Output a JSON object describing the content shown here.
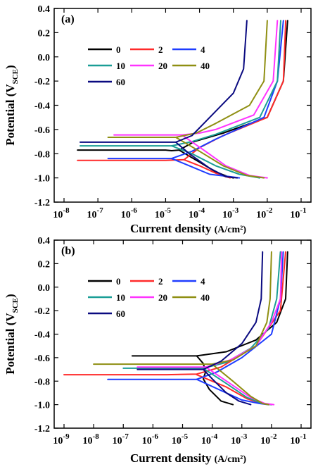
{
  "chart_data": [
    {
      "type": "line",
      "panel_label": "(a)",
      "xlabel_main": "Current density ",
      "xlabel_unit": "(A/cm²)",
      "ylabel_main": "Potential (V",
      "ylabel_sub": "SCE",
      "ylabel_end": ")",
      "x_scale": "log",
      "xlim": [
        1e-08,
        0.1
      ],
      "ylim": [
        -1.2,
        0.4
      ],
      "x_ticks": [
        -8,
        -7,
        -6,
        -5,
        -4,
        -3,
        -2,
        -1
      ],
      "y_ticks": [
        "0.4",
        "0.2",
        "0.0",
        "-0.2",
        "-0.4",
        "-0.6",
        "-0.8",
        "-1.0",
        "-1.2"
      ],
      "legend_placement": "top-left",
      "series": [
        {
          "name": "0",
          "color": "#000000",
          "ecorr": -0.77,
          "icorr": 2.5e-05,
          "x": [
            2.5e-08,
            1e-06,
            1e-05,
            1.5e-05,
            2.5e-05,
            7e-05,
            0.0005,
            0.01,
            0.03,
            0.04
          ],
          "y": [
            -0.77,
            -0.77,
            -0.77,
            -0.775,
            -0.77,
            -0.7,
            -0.63,
            -0.5,
            -0.2,
            0.3
          ],
          "cathodic_x": [
            2.5e-05,
            0.0001,
            0.0003,
            0.0007,
            0.001
          ],
          "cathodic_y": [
            -0.77,
            -0.87,
            -0.95,
            -0.99,
            -1.0
          ]
        },
        {
          "name": "2",
          "color": "#ff2a2a",
          "ecorr": -0.85,
          "icorr": 3.5e-05,
          "x": [
            2.5e-08,
            1e-06,
            1e-05,
            3.5e-05,
            0.0001,
            0.0005,
            0.01,
            0.03,
            0.035
          ],
          "y": [
            -0.855,
            -0.855,
            -0.855,
            -0.85,
            -0.75,
            -0.65,
            -0.5,
            -0.2,
            0.3
          ],
          "cathodic_x": [
            3.5e-05,
            0.0001,
            0.0003,
            0.0006,
            0.0008
          ],
          "cathodic_y": [
            -0.85,
            -0.9,
            -0.96,
            -0.99,
            -1.0
          ]
        },
        {
          "name": "4",
          "color": "#1e3cff",
          "ecorr": -0.84,
          "icorr": 1.5e-05,
          "x": [
            2e-07,
            1e-06,
            1.5e-05,
            6e-05,
            0.0003,
            0.008,
            0.02,
            0.03
          ],
          "y": [
            -0.84,
            -0.84,
            -0.84,
            -0.78,
            -0.68,
            -0.5,
            -0.2,
            0.3
          ],
          "cathodic_x": [
            1.5e-05,
            5e-05,
            0.0002,
            0.0008,
            0.0015
          ],
          "cathodic_y": [
            -0.84,
            -0.9,
            -0.97,
            -0.99,
            -1.0
          ]
        },
        {
          "name": "10",
          "color": "#1a9e96",
          "ecorr": -0.73,
          "icorr": 1.5e-05,
          "x": [
            3e-08,
            1e-06,
            1.5e-05,
            6e-05,
            0.0003,
            0.006,
            0.02,
            0.025
          ],
          "y": [
            -0.735,
            -0.735,
            -0.735,
            -0.7,
            -0.64,
            -0.5,
            -0.2,
            0.3
          ],
          "cathodic_x": [
            1.5e-05,
            6e-05,
            0.0003,
            0.0015,
            0.006
          ],
          "cathodic_y": [
            -0.735,
            -0.8,
            -0.9,
            -0.97,
            -1.0
          ]
        },
        {
          "name": "20",
          "color": "#ff33ff",
          "ecorr": -0.65,
          "icorr": 3e-05,
          "x": [
            3e-07,
            3e-06,
            3e-05,
            0.0001,
            0.0003,
            0.004,
            0.015,
            0.02
          ],
          "y": [
            -0.645,
            -0.645,
            -0.645,
            -0.63,
            -0.6,
            -0.48,
            -0.2,
            0.3
          ],
          "cathodic_x": [
            3e-05,
            0.00015,
            0.0006,
            0.003,
            0.01
          ],
          "cathodic_y": [
            -0.645,
            -0.78,
            -0.9,
            -0.98,
            -1.0
          ]
        },
        {
          "name": "40",
          "color": "#8f8f12",
          "ecorr": -0.665,
          "icorr": 2e-05,
          "x": [
            2e-07,
            3e-06,
            2e-05,
            8e-05,
            0.0003,
            0.003,
            0.008,
            0.01
          ],
          "y": [
            -0.665,
            -0.665,
            -0.665,
            -0.63,
            -0.55,
            -0.4,
            -0.2,
            0.3
          ],
          "cathodic_x": [
            2e-05,
            0.0001,
            0.0005,
            0.0025,
            0.008
          ],
          "cathodic_y": [
            -0.665,
            -0.78,
            -0.9,
            -0.98,
            -1.0
          ]
        },
        {
          "name": "60",
          "color": "#0a0a80",
          "ecorr": -0.7,
          "icorr": 2e-05,
          "x": [
            3e-08,
            1e-06,
            2e-05,
            6e-05,
            0.0002,
            0.001,
            0.002,
            0.0025
          ],
          "y": [
            -0.705,
            -0.705,
            -0.705,
            -0.65,
            -0.5,
            -0.3,
            -0.1,
            0.3
          ],
          "cathodic_x": [
            2e-05,
            5e-05,
            0.0002,
            0.0006,
            0.0013
          ],
          "cathodic_y": [
            -0.705,
            -0.8,
            -0.92,
            -0.99,
            -1.0
          ]
        }
      ]
    },
    {
      "type": "line",
      "panel_label": "(b)",
      "xlabel_main": "Current density ",
      "xlabel_unit": "(A/cm²)",
      "ylabel_main": "Potential (V",
      "ylabel_sub": "SCE",
      "ylabel_end": ")",
      "x_scale": "log",
      "xlim": [
        1e-09,
        0.1
      ],
      "ylim": [
        -1.2,
        0.4
      ],
      "x_ticks": [
        -9,
        -8,
        -7,
        -6,
        -5,
        -4,
        -3,
        -2,
        -1
      ],
      "y_ticks": [
        "0.4",
        "0.2",
        "0.0",
        "-0.2",
        "-0.4",
        "-0.6",
        "-0.8",
        "-1.0",
        "-1.2"
      ],
      "legend_placement": "top-left",
      "series": [
        {
          "name": "0",
          "color": "#000000",
          "ecorr": -0.59,
          "icorr": 3e-05,
          "x": [
            2e-07,
            3e-06,
            3e-05,
            0.0003,
            0.003,
            0.015,
            0.03,
            0.035
          ],
          "y": [
            -0.585,
            -0.585,
            -0.585,
            -0.55,
            -0.45,
            -0.3,
            -0.1,
            0.3
          ],
          "cathodic_x": [
            3e-05,
            5e-05,
            6e-05,
            5e-05,
            8e-05,
            0.0002,
            0.0005
          ],
          "cathodic_y": [
            -0.585,
            -0.65,
            -0.72,
            -0.78,
            -0.87,
            -0.97,
            -1.0
          ]
        },
        {
          "name": "2",
          "color": "#ff2a2a",
          "ecorr": -0.745,
          "icorr": 3e-05,
          "x": [
            1e-09,
            1e-07,
            3e-06,
            3e-05,
            0.0002,
            0.003,
            0.02,
            0.03
          ],
          "y": [
            -0.745,
            -0.745,
            -0.745,
            -0.74,
            -0.68,
            -0.5,
            -0.2,
            0.3
          ],
          "cathodic_x": [
            3e-05,
            0.0003,
            0.0015,
            0.005,
            0.01
          ],
          "cathodic_y": [
            -0.745,
            -0.85,
            -0.95,
            -0.99,
            -1.0
          ]
        },
        {
          "name": "4",
          "color": "#1e3cff",
          "ecorr": -0.785,
          "icorr": 3e-05,
          "x": [
            3e-08,
            1e-06,
            3e-05,
            0.00015,
            0.001,
            0.01,
            0.02,
            0.025
          ],
          "y": [
            -0.785,
            -0.785,
            -0.785,
            -0.72,
            -0.6,
            -0.4,
            -0.1,
            0.3
          ],
          "cathodic_x": [
            3e-05,
            0.0002,
            0.001,
            0.004,
            0.008
          ],
          "cathodic_y": [
            -0.785,
            -0.88,
            -0.96,
            -0.99,
            -1.0
          ]
        },
        {
          "name": "10",
          "color": "#1a9e96",
          "ecorr": -0.69,
          "icorr": 5e-05,
          "x": [
            1e-07,
            3e-06,
            5e-05,
            0.0003,
            0.002,
            0.008,
            0.015,
            0.02
          ],
          "y": [
            -0.69,
            -0.69,
            -0.69,
            -0.64,
            -0.52,
            -0.35,
            -0.1,
            0.3
          ],
          "cathodic_x": [
            5e-05,
            0.0003,
            0.0015,
            0.005,
            0.01
          ],
          "cathodic_y": [
            -0.69,
            -0.82,
            -0.94,
            -0.99,
            -1.0
          ]
        },
        {
          "name": "20",
          "color": "#ff33ff",
          "ecorr": -0.68,
          "icorr": 6e-05,
          "x": [
            3e-07,
            5e-06,
            6e-05,
            0.0004,
            0.003,
            0.01,
            0.02,
            0.022
          ],
          "y": [
            -0.68,
            -0.68,
            -0.68,
            -0.62,
            -0.5,
            -0.3,
            -0.1,
            0.3
          ],
          "cathodic_x": [
            6e-05,
            0.0004,
            0.002,
            0.006,
            0.012
          ],
          "cathodic_y": [
            -0.68,
            -0.82,
            -0.94,
            -0.99,
            -1.0
          ]
        },
        {
          "name": "40",
          "color": "#8f8f12",
          "ecorr": -0.655,
          "icorr": 0.0001,
          "x": [
            1e-08,
            1e-06,
            0.0001,
            0.0005,
            0.003,
            0.007,
            0.009,
            0.01
          ],
          "y": [
            -0.655,
            -0.655,
            -0.655,
            -0.62,
            -0.5,
            -0.3,
            -0.1,
            0.3
          ],
          "cathodic_x": [
            0.0001,
            0.0005,
            0.002,
            0.005,
            0.008
          ],
          "cathodic_y": [
            -0.655,
            -0.8,
            -0.93,
            -0.99,
            -1.0
          ]
        },
        {
          "name": "60",
          "color": "#0a0a80",
          "ecorr": -0.7,
          "icorr": 5e-05,
          "x": [
            3e-07,
            5e-06,
            5e-05,
            0.0002,
            0.001,
            0.003,
            0.0045,
            0.005
          ],
          "y": [
            -0.7,
            -0.7,
            -0.7,
            -0.63,
            -0.48,
            -0.3,
            -0.1,
            0.3
          ],
          "cathodic_x": [
            5e-05,
            0.0001,
            0.0003,
            0.0008,
            0.002
          ],
          "cathodic_y": [
            -0.7,
            -0.78,
            -0.9,
            -0.97,
            -1.0
          ]
        }
      ]
    }
  ]
}
